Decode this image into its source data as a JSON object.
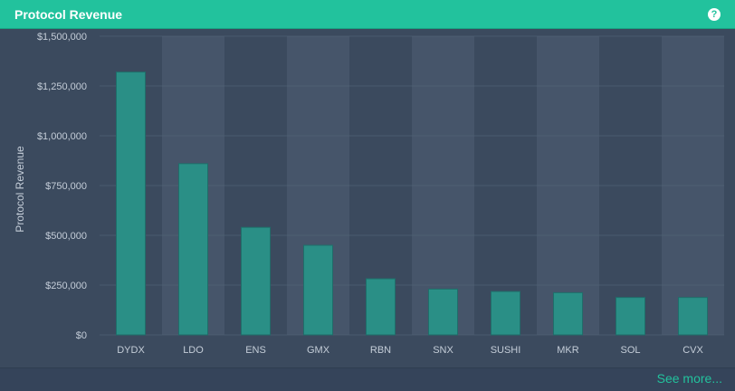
{
  "header": {
    "title": "Protocol Revenue",
    "help_icon": "question-circle-icon",
    "help_symbol": "?"
  },
  "footer": {
    "see_more_label": "See more..."
  },
  "colors": {
    "accent": "#22c29d",
    "bar_fill": "#2a8f86",
    "bar_stroke": "#1f6e6a",
    "plot_band_dark": "#3b4a5e",
    "plot_band_light": "#46556a",
    "gridline": "#55657a",
    "axis_text": "#c4cdd8"
  },
  "chart_data": {
    "type": "bar",
    "title": "Protocol Revenue",
    "xlabel": "",
    "ylabel": "Protocol Revenue",
    "ylim": [
      0,
      1500000
    ],
    "yticks": [
      0,
      250000,
      500000,
      750000,
      1000000,
      1250000,
      1500000
    ],
    "ytick_labels": [
      "$0",
      "$250,000",
      "$500,000",
      "$750,000",
      "$1,000,000",
      "$1,250,000",
      "$1,500,000"
    ],
    "grid": true,
    "legend": "none",
    "categories": [
      "DYDX",
      "LDO",
      "ENS",
      "GMX",
      "RBN",
      "SNX",
      "SUSHI",
      "MKR",
      "SOL",
      "CVX"
    ],
    "values": [
      1320000,
      860000,
      540000,
      450000,
      282000,
      230000,
      218000,
      212000,
      188000,
      188000
    ]
  }
}
